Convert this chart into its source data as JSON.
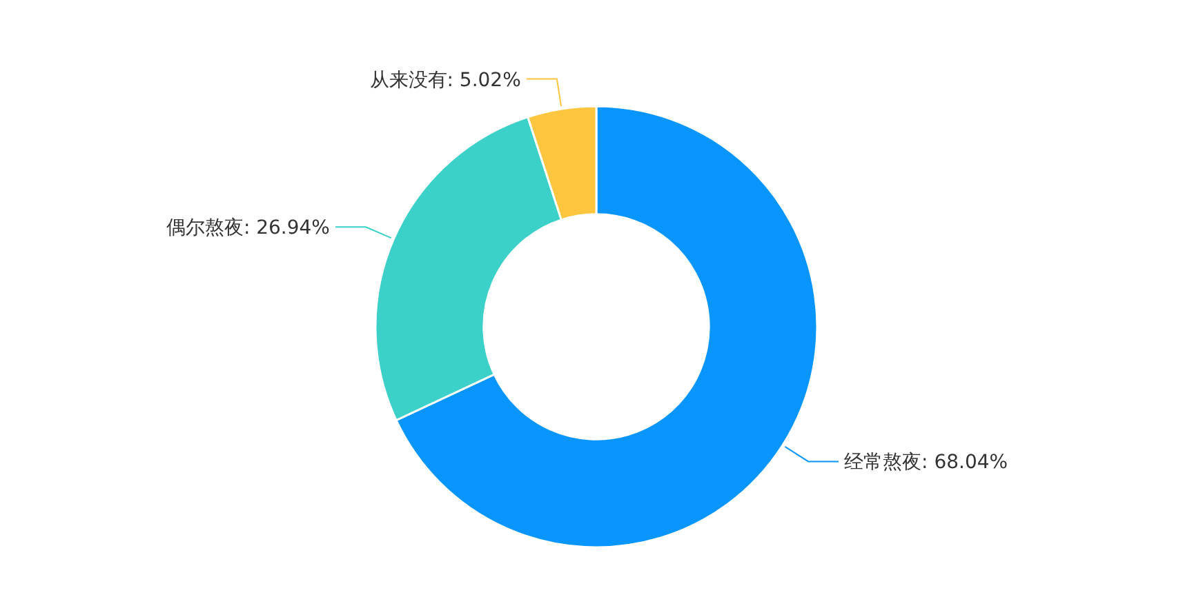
{
  "chart_data": {
    "type": "donut",
    "categories": [
      "经常熬夜",
      "偶尔熬夜",
      "从来没有"
    ],
    "values": [
      68.04,
      26.94,
      5.02
    ],
    "value_labels": [
      "68.04%",
      "26.94%",
      "5.02%"
    ],
    "colors": [
      "#0896fe",
      "#3bd0c8",
      "#fec53e"
    ]
  }
}
